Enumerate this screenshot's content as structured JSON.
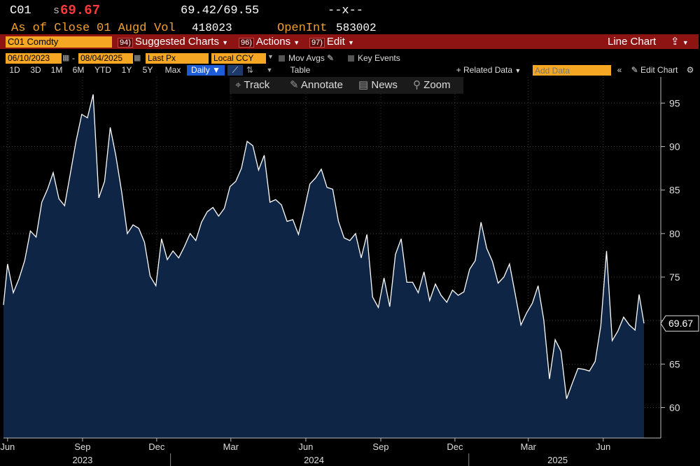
{
  "header": {
    "ticker": "C01",
    "last_prefix": "s",
    "last_price": "69.67",
    "bid_ask": "69.42/69.55",
    "change": "--x--",
    "as_of": "As of Close",
    "contract": "01 Augd",
    "vol_label": "Vol",
    "vol_value": "418023",
    "openint_label": "OpenInt",
    "openint_value": "583002"
  },
  "toolbar": {
    "security": "C01 Comdty",
    "suggested_num": "94)",
    "suggested_label": "Suggested Charts",
    "actions_num": "96)",
    "actions_label": "Actions",
    "edit_num": "97)",
    "edit_label": "Edit",
    "chart_type": "Line Chart"
  },
  "controls": {
    "start_date": "06/10/2023",
    "end_date": "08/04/2025",
    "field": "Last Px",
    "currency": "Local CCY",
    "mov_avgs": "Mov Avgs",
    "key_events": "Key Events",
    "periods": [
      "1D",
      "3D",
      "1M",
      "6M",
      "YTD",
      "1Y",
      "5Y",
      "Max"
    ],
    "frequency": "Daily",
    "table": "Table",
    "related_data": "+ Related Data",
    "add_data_placeholder": "Add Data",
    "edit_chart": "Edit Chart"
  },
  "tools": {
    "track": "Track",
    "annotate": "Annotate",
    "news": "News",
    "zoom": "Zoom"
  },
  "colors": {
    "line": "#ffffff",
    "area": "#0e2545",
    "accent_amber": "#f5a623",
    "toolbar_red": "#8e1414",
    "price_red": "#ff3838"
  },
  "chart_data": {
    "type": "area",
    "y_range": [
      56.5,
      98
    ],
    "y_ticks": [
      60,
      65,
      70,
      75,
      80,
      85,
      90,
      95
    ],
    "last_value": "69.67",
    "x_range": [
      "2023-06-10",
      "2025-08-04"
    ],
    "x_month_ticks": [
      {
        "label": "Jun",
        "date": "2023-06-15"
      },
      {
        "label": "Sep",
        "date": "2023-09-15"
      },
      {
        "label": "Dec",
        "date": "2023-12-15"
      },
      {
        "label": "Mar",
        "date": "2024-03-15"
      },
      {
        "label": "Jun",
        "date": "2024-06-15"
      },
      {
        "label": "Sep",
        "date": "2024-09-15"
      },
      {
        "label": "Dec",
        "date": "2024-12-15"
      },
      {
        "label": "Mar",
        "date": "2025-03-15"
      },
      {
        "label": "Jun",
        "date": "2025-06-15"
      }
    ],
    "x_year_labels": [
      {
        "label": "2023",
        "date": "2023-09-15"
      },
      {
        "label": "2024",
        "date": "2024-06-25"
      },
      {
        "label": "2025",
        "date": "2025-04-20"
      }
    ],
    "year_dividers": [
      "2024-01-01",
      "2025-01-01"
    ],
    "series": [
      {
        "points": [
          [
            "2023-06-10",
            71.8
          ],
          [
            "2023-06-15",
            76.5
          ],
          [
            "2023-06-22",
            73.2
          ],
          [
            "2023-06-29",
            74.8
          ],
          [
            "2023-07-06",
            76.9
          ],
          [
            "2023-07-13",
            80.3
          ],
          [
            "2023-07-20",
            79.6
          ],
          [
            "2023-07-27",
            83.6
          ],
          [
            "2023-08-03",
            85.1
          ],
          [
            "2023-08-10",
            87.0
          ],
          [
            "2023-08-17",
            84.0
          ],
          [
            "2023-08-24",
            83.2
          ],
          [
            "2023-08-31",
            86.9
          ],
          [
            "2023-09-07",
            90.6
          ],
          [
            "2023-09-14",
            93.7
          ],
          [
            "2023-09-21",
            93.3
          ],
          [
            "2023-09-28",
            96.0
          ],
          [
            "2023-10-05",
            84.1
          ],
          [
            "2023-10-12",
            86.0
          ],
          [
            "2023-10-19",
            92.2
          ],
          [
            "2023-10-26",
            88.9
          ],
          [
            "2023-11-02",
            84.8
          ],
          [
            "2023-11-09",
            80.0
          ],
          [
            "2023-11-16",
            81.0
          ],
          [
            "2023-11-23",
            80.6
          ],
          [
            "2023-11-30",
            79.0
          ],
          [
            "2023-12-07",
            75.1
          ],
          [
            "2023-12-14",
            74.0
          ],
          [
            "2023-12-21",
            79.4
          ],
          [
            "2023-12-28",
            77.0
          ],
          [
            "2024-01-04",
            78.0
          ],
          [
            "2024-01-11",
            77.2
          ],
          [
            "2024-01-18",
            78.5
          ],
          [
            "2024-01-25",
            80.0
          ],
          [
            "2024-02-01",
            79.2
          ],
          [
            "2024-02-08",
            81.3
          ],
          [
            "2024-02-15",
            82.5
          ],
          [
            "2024-02-22",
            83.0
          ],
          [
            "2024-02-29",
            82.0
          ],
          [
            "2024-03-07",
            82.9
          ],
          [
            "2024-03-14",
            85.4
          ],
          [
            "2024-03-21",
            86.0
          ],
          [
            "2024-03-28",
            87.5
          ],
          [
            "2024-04-04",
            90.6
          ],
          [
            "2024-04-11",
            90.1
          ],
          [
            "2024-04-18",
            87.3
          ],
          [
            "2024-04-25",
            89.0
          ],
          [
            "2024-05-02",
            83.6
          ],
          [
            "2024-05-09",
            83.9
          ],
          [
            "2024-05-16",
            83.3
          ],
          [
            "2024-05-23",
            81.4
          ],
          [
            "2024-05-30",
            81.6
          ],
          [
            "2024-06-06",
            79.9
          ],
          [
            "2024-06-13",
            82.7
          ],
          [
            "2024-06-20",
            85.7
          ],
          [
            "2024-06-27",
            86.4
          ],
          [
            "2024-07-04",
            87.4
          ],
          [
            "2024-07-11",
            85.3
          ],
          [
            "2024-07-18",
            85.1
          ],
          [
            "2024-07-25",
            81.4
          ],
          [
            "2024-08-01",
            79.5
          ],
          [
            "2024-08-08",
            79.2
          ],
          [
            "2024-08-15",
            80.0
          ],
          [
            "2024-08-22",
            77.2
          ],
          [
            "2024-08-29",
            79.9
          ],
          [
            "2024-09-05",
            72.7
          ],
          [
            "2024-09-12",
            71.5
          ],
          [
            "2024-09-19",
            74.9
          ],
          [
            "2024-09-26",
            71.6
          ],
          [
            "2024-10-03",
            77.6
          ],
          [
            "2024-10-10",
            79.4
          ],
          [
            "2024-10-17",
            74.4
          ],
          [
            "2024-10-24",
            74.4
          ],
          [
            "2024-10-31",
            73.2
          ],
          [
            "2024-11-07",
            75.6
          ],
          [
            "2024-11-14",
            72.3
          ],
          [
            "2024-11-21",
            74.2
          ],
          [
            "2024-11-28",
            72.9
          ],
          [
            "2024-12-05",
            72.1
          ],
          [
            "2024-12-12",
            73.5
          ],
          [
            "2024-12-19",
            72.9
          ],
          [
            "2024-12-26",
            73.3
          ],
          [
            "2025-01-02",
            75.9
          ],
          [
            "2025-01-09",
            76.9
          ],
          [
            "2025-01-16",
            81.3
          ],
          [
            "2025-01-23",
            78.3
          ],
          [
            "2025-01-30",
            76.8
          ],
          [
            "2025-02-06",
            74.3
          ],
          [
            "2025-02-13",
            75.0
          ],
          [
            "2025-02-20",
            76.5
          ],
          [
            "2025-02-27",
            73.0
          ],
          [
            "2025-03-06",
            69.5
          ],
          [
            "2025-03-13",
            70.9
          ],
          [
            "2025-03-20",
            72.0
          ],
          [
            "2025-03-27",
            74.0
          ],
          [
            "2025-04-03",
            70.1
          ],
          [
            "2025-04-10",
            63.3
          ],
          [
            "2025-04-17",
            67.8
          ],
          [
            "2025-04-24",
            66.5
          ],
          [
            "2025-05-01",
            61.0
          ],
          [
            "2025-05-08",
            62.8
          ],
          [
            "2025-05-15",
            64.5
          ],
          [
            "2025-05-22",
            64.4
          ],
          [
            "2025-05-29",
            64.2
          ],
          [
            "2025-06-05",
            65.3
          ],
          [
            "2025-06-12",
            69.4
          ],
          [
            "2025-06-19",
            78.0
          ],
          [
            "2025-06-26",
            67.7
          ],
          [
            "2025-07-03",
            68.8
          ],
          [
            "2025-07-10",
            70.4
          ],
          [
            "2025-07-17",
            69.5
          ],
          [
            "2025-07-24",
            68.9
          ],
          [
            "2025-07-29",
            73.0
          ],
          [
            "2025-08-04",
            69.67
          ]
        ]
      }
    ]
  }
}
